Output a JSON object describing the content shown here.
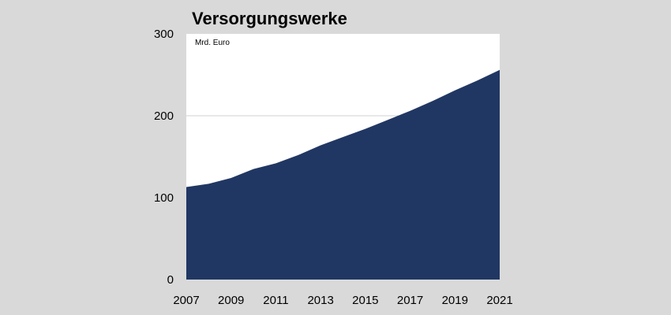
{
  "chart_data": {
    "type": "area",
    "title": "Versorgungswerke",
    "unit_label": "Mrd. Euro",
    "xlabel": "",
    "ylabel": "",
    "x": [
      2007,
      2008,
      2009,
      2010,
      2011,
      2012,
      2013,
      2014,
      2015,
      2016,
      2017,
      2018,
      2019,
      2020,
      2021
    ],
    "values": [
      113,
      117,
      124,
      135,
      142,
      152,
      164,
      174,
      184,
      195,
      206,
      218,
      231,
      243,
      256
    ],
    "ylim": [
      0,
      300
    ],
    "xlim": [
      2007,
      2021
    ],
    "yticks": [
      "0",
      "100",
      "200",
      "300"
    ],
    "xticks": [
      "2007",
      "2009",
      "2011",
      "2013",
      "2015",
      "2017",
      "2019",
      "2021"
    ],
    "grid": "horizontal",
    "legend": "none",
    "colors": {
      "area": "#213763",
      "plot_background": "#ffffff",
      "page_background": "#d9d9d9",
      "gridline": "#d0d0d0"
    }
  }
}
